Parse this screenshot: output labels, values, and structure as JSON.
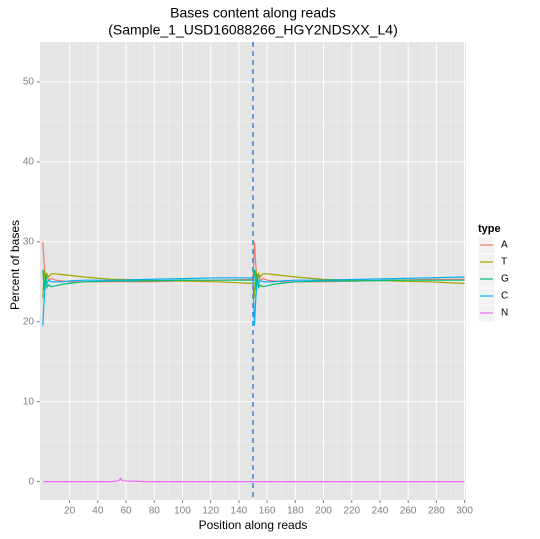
{
  "chart_data": {
    "type": "line",
    "title": "Bases content along reads",
    "subtitle": "(Sample_1_USD16088266_HGY2NDSXX_L4)",
    "x_label": "Position along reads",
    "y_label": "Percent of bases",
    "legend_title": "type",
    "x": [
      1,
      2,
      3,
      4,
      5,
      7,
      10,
      15,
      20,
      30,
      50,
      55,
      56,
      57,
      75,
      100,
      125,
      149,
      150,
      151,
      152,
      153,
      154,
      155,
      157,
      160,
      165,
      170,
      180,
      200,
      225,
      250,
      275,
      300
    ],
    "series": [
      {
        "name": "A",
        "color": "#F8766D",
        "values": [
          30,
          27,
          25,
          25.8,
          25.2,
          25.4,
          25.2,
          25.1,
          25,
          25,
          25,
          25,
          25,
          25,
          25,
          25.1,
          25.2,
          25.3,
          25.3,
          30,
          27,
          25,
          25.8,
          25.2,
          25.4,
          25.2,
          25.1,
          25,
          25,
          25,
          25.1,
          25.2,
          25.3,
          25.3
        ]
      },
      {
        "name": "T",
        "color": "#A3A500",
        "values": [
          23,
          26.5,
          25,
          26,
          25.6,
          26,
          26,
          25.9,
          25.8,
          25.6,
          25.3,
          25.3,
          25.3,
          25.3,
          25.2,
          25.1,
          25,
          24.8,
          24.8,
          23,
          26.5,
          25,
          26,
          25.6,
          26,
          26,
          25.9,
          25.8,
          25.6,
          25.3,
          25.2,
          25.1,
          25,
          24.8
        ]
      },
      {
        "name": "G",
        "color": "#00BF7D",
        "values": [
          26.5,
          24,
          26,
          24.3,
          24.6,
          24.4,
          24.5,
          24.7,
          24.8,
          25,
          25.1,
          25.1,
          25.1,
          25.1,
          25.1,
          25.2,
          25.2,
          25.2,
          25.2,
          26.5,
          24,
          26,
          24.3,
          24.6,
          24.4,
          24.5,
          24.7,
          24.8,
          25,
          25.1,
          25.1,
          25.2,
          25.2,
          25.2
        ]
      },
      {
        "name": "C",
        "color": "#00B0F6",
        "values": [
          19.5,
          23,
          25,
          24.8,
          25.2,
          25,
          25,
          25,
          25.1,
          25.2,
          25.2,
          25.2,
          25.2,
          25.2,
          25.3,
          25.4,
          25.5,
          25.5,
          25.5,
          19.5,
          23,
          25,
          24.8,
          25.2,
          25,
          25,
          25,
          25.1,
          25.2,
          25.2,
          25.3,
          25.4,
          25.5,
          25.6
        ]
      },
      {
        "name": "N",
        "color": "#E76BF3",
        "values": [
          0,
          0,
          0,
          0,
          0,
          0,
          0,
          0,
          0,
          0,
          0,
          0.1,
          0.4,
          0.1,
          0,
          0,
          0,
          0,
          0,
          0,
          0,
          0,
          0,
          0,
          0,
          0,
          0,
          0,
          0,
          0,
          0,
          0,
          0,
          0
        ]
      }
    ],
    "vline": {
      "x": 150,
      "color": "#3A87D6"
    },
    "xlim": [
      -1,
      301
    ],
    "ylim": [
      -2.3,
      55
    ],
    "xticks": [
      20,
      40,
      60,
      80,
      100,
      120,
      140,
      160,
      180,
      200,
      220,
      240,
      260,
      280,
      300
    ],
    "yticks": [
      0,
      10,
      20,
      30,
      40,
      50
    ],
    "grid": true,
    "legend": "right"
  }
}
